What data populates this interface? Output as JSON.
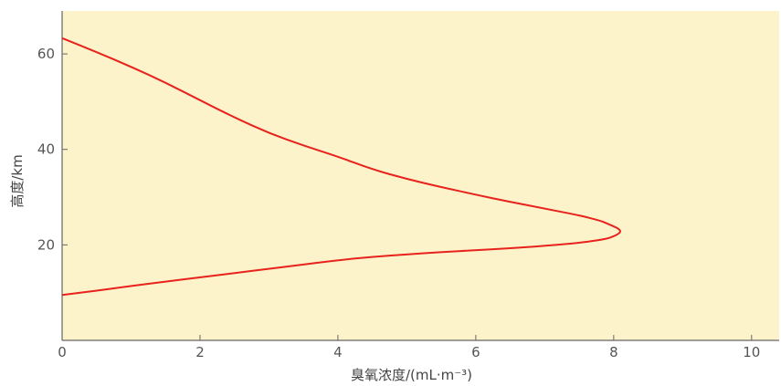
{
  "chart_data": {
    "type": "line",
    "xlabel": "臭氧浓度/(mL·m⁻³)",
    "ylabel": "高度/km",
    "xlim": [
      0,
      10.4
    ],
    "ylim": [
      0,
      69
    ],
    "x_ticks": [
      "0",
      "2",
      "4",
      "6",
      "8",
      "10"
    ],
    "y_ticks": [
      "20",
      "40",
      "60"
    ],
    "grid": false,
    "legend": "none",
    "colors": {
      "background": "#fdf3cb",
      "line": "#e8221c",
      "axis": "#666666"
    },
    "series": [
      {
        "x": [
          0.0,
          0.5,
          1.0,
          1.5,
          2.0,
          2.5,
          3.0,
          3.5,
          4.0,
          4.5,
          5.0,
          5.5,
          6.0,
          6.5,
          7.0,
          7.4,
          7.7,
          7.9,
          8.0,
          8.07,
          8.1,
          8.08,
          8.0,
          7.9,
          7.8,
          7.5,
          7.0,
          6.5,
          6.0,
          5.5,
          5.0,
          4.5,
          4.0,
          3.5,
          3.0,
          2.5,
          2.0,
          1.5,
          1.0,
          0.5,
          0.0
        ],
        "y": [
          9.5,
          10.4,
          11.4,
          12.3,
          13.2,
          14.1,
          15.0,
          15.9,
          16.8,
          17.5,
          18.0,
          18.5,
          18.9,
          19.3,
          19.8,
          20.3,
          20.8,
          21.3,
          21.8,
          22.3,
          22.8,
          23.3,
          23.9,
          24.5,
          25.1,
          26.2,
          27.6,
          29.0,
          30.5,
          32.1,
          33.8,
          35.8,
          38.5,
          40.8,
          43.4,
          46.7,
          50.3,
          54.0,
          57.3,
          60.4,
          63.3
        ]
      }
    ]
  }
}
